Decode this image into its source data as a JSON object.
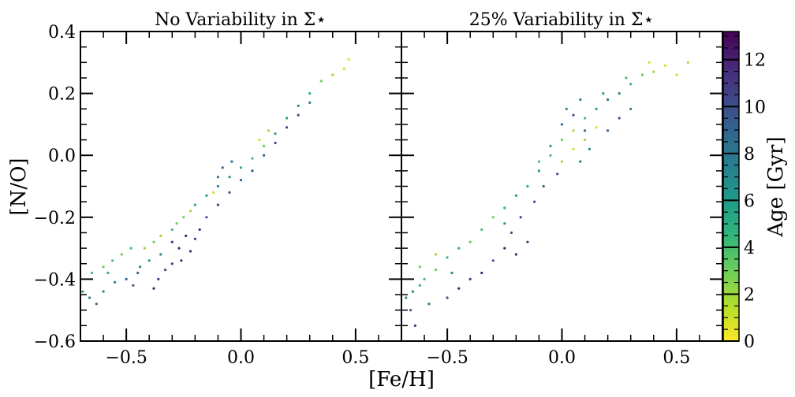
{
  "figure": {
    "xlabel": "[Fe/H]",
    "ylabel": "[N/O]",
    "colorbar_label": "Age [Gyr]"
  },
  "chart_data": [
    {
      "type": "scatter",
      "title": "No Variability in Σ̇⋆",
      "xlabel": "[Fe/H]",
      "ylabel": "[N/O]",
      "xlim": [
        -0.7,
        0.7
      ],
      "ylim": [
        -0.6,
        0.4
      ],
      "xticks": [
        -0.5,
        0.0,
        0.5
      ],
      "xtick_labels": [
        "−0.5",
        "0.0",
        "0.5"
      ],
      "yticks": [
        -0.6,
        -0.4,
        -0.2,
        0.0,
        0.2,
        0.4
      ],
      "ytick_labels": [
        "−0.6",
        "−0.4",
        "−0.2",
        "0.0",
        "0.2",
        "0.4"
      ],
      "grid": false,
      "points_x_y_age": [
        [
          -0.69,
          -0.44,
          6
        ],
        [
          -0.66,
          -0.46,
          8
        ],
        [
          -0.63,
          -0.48,
          9
        ],
        [
          -0.65,
          -0.38,
          4
        ],
        [
          -0.6,
          -0.36,
          3
        ],
        [
          -0.56,
          -0.34,
          4
        ],
        [
          -0.52,
          -0.32,
          3
        ],
        [
          -0.5,
          -0.4,
          9
        ],
        [
          -0.47,
          -0.42,
          10
        ],
        [
          -0.45,
          -0.38,
          9
        ],
        [
          -0.55,
          -0.41,
          8
        ],
        [
          -0.58,
          -0.38,
          5
        ],
        [
          -0.48,
          -0.3,
          4
        ],
        [
          -0.42,
          -0.3,
          2
        ],
        [
          -0.38,
          -0.28,
          3
        ],
        [
          -0.35,
          -0.26,
          2
        ],
        [
          -0.3,
          -0.24,
          4
        ],
        [
          -0.25,
          -0.2,
          3
        ],
        [
          -0.2,
          -0.16,
          5
        ],
        [
          -0.15,
          -0.13,
          6
        ],
        [
          -0.1,
          -0.1,
          7
        ],
        [
          -0.05,
          -0.07,
          6
        ],
        [
          0.0,
          -0.04,
          5
        ],
        [
          0.05,
          -0.01,
          4
        ],
        [
          0.1,
          0.03,
          3
        ],
        [
          0.15,
          0.07,
          5
        ],
        [
          0.2,
          0.12,
          6
        ],
        [
          0.25,
          0.16,
          7
        ],
        [
          0.3,
          0.2,
          5
        ],
        [
          0.35,
          0.24,
          3
        ],
        [
          0.4,
          0.26,
          2
        ],
        [
          0.45,
          0.28,
          1
        ],
        [
          0.47,
          0.31,
          0.5
        ],
        [
          0.08,
          0.05,
          1
        ],
        [
          0.12,
          0.08,
          2
        ],
        [
          -0.12,
          -0.12,
          1
        ],
        [
          -0.22,
          -0.18,
          2
        ],
        [
          -0.28,
          -0.22,
          3
        ],
        [
          -0.3,
          -0.28,
          11
        ],
        [
          -0.27,
          -0.3,
          12
        ],
        [
          -0.24,
          -0.26,
          12
        ],
        [
          -0.2,
          -0.27,
          11
        ],
        [
          -0.18,
          -0.24,
          12
        ],
        [
          -0.26,
          -0.34,
          12
        ],
        [
          -0.3,
          -0.35,
          11
        ],
        [
          -0.33,
          -0.37,
          10
        ],
        [
          -0.36,
          -0.4,
          11
        ],
        [
          -0.38,
          -0.43,
          12
        ],
        [
          -0.22,
          -0.31,
          12
        ],
        [
          -0.15,
          -0.2,
          10
        ],
        [
          -0.1,
          -0.16,
          11
        ],
        [
          -0.05,
          -0.12,
          10
        ],
        [
          0.0,
          -0.08,
          9
        ],
        [
          0.05,
          -0.05,
          10
        ],
        [
          0.1,
          0.0,
          9
        ],
        [
          0.15,
          0.04,
          10
        ],
        [
          0.2,
          0.09,
          11
        ],
        [
          0.25,
          0.13,
          10
        ],
        [
          -0.08,
          -0.04,
          9
        ],
        [
          -0.04,
          -0.02,
          8
        ],
        [
          -0.1,
          -0.07,
          8
        ],
        [
          0.3,
          0.17,
          8
        ],
        [
          -0.35,
          -0.32,
          7
        ],
        [
          -0.4,
          -0.34,
          6
        ],
        [
          -0.44,
          -0.36,
          7
        ],
        [
          -0.6,
          -0.44,
          7
        ]
      ]
    },
    {
      "type": "scatter",
      "title": "25% Variability in Σ̇⋆",
      "xlabel": "[Fe/H]",
      "xlim": [
        -0.7,
        0.7
      ],
      "ylim": [
        -0.6,
        0.4
      ],
      "xticks": [
        -0.5,
        0.0,
        0.5
      ],
      "xtick_labels": [
        "−0.5",
        "0.0",
        "0.5"
      ],
      "grid": false,
      "points_x_y_age": [
        [
          -0.68,
          -0.46,
          6
        ],
        [
          -0.65,
          -0.44,
          7
        ],
        [
          -0.62,
          -0.42,
          5
        ],
        [
          -0.66,
          -0.5,
          10
        ],
        [
          -0.64,
          -0.55,
          11
        ],
        [
          -0.6,
          -0.4,
          4
        ],
        [
          -0.55,
          -0.37,
          3
        ],
        [
          -0.5,
          -0.33,
          4
        ],
        [
          -0.45,
          -0.3,
          5
        ],
        [
          -0.4,
          -0.28,
          3
        ],
        [
          -0.35,
          -0.24,
          4
        ],
        [
          -0.3,
          -0.2,
          3
        ],
        [
          -0.25,
          -0.17,
          5
        ],
        [
          -0.2,
          -0.13,
          6
        ],
        [
          -0.15,
          -0.1,
          5
        ],
        [
          -0.1,
          -0.05,
          6
        ],
        [
          -0.05,
          0.0,
          4
        ],
        [
          0.0,
          0.05,
          3
        ],
        [
          0.05,
          0.08,
          2
        ],
        [
          0.1,
          0.12,
          4
        ],
        [
          0.15,
          0.15,
          6
        ],
        [
          0.2,
          0.18,
          8
        ],
        [
          0.25,
          0.2,
          7
        ],
        [
          0.3,
          0.23,
          5
        ],
        [
          0.35,
          0.26,
          3
        ],
        [
          0.4,
          0.27,
          2
        ],
        [
          0.45,
          0.29,
          1
        ],
        [
          0.55,
          0.3,
          2
        ],
        [
          0.5,
          0.26,
          1
        ],
        [
          0.38,
          0.3,
          1
        ],
        [
          0.0,
          0.1,
          9
        ],
        [
          0.05,
          0.13,
          10
        ],
        [
          0.1,
          0.08,
          9
        ],
        [
          0.12,
          0.02,
          7
        ],
        [
          0.08,
          -0.02,
          8
        ],
        [
          -0.02,
          -0.06,
          10
        ],
        [
          -0.08,
          -0.1,
          9
        ],
        [
          -0.12,
          -0.15,
          10
        ],
        [
          -0.18,
          -0.2,
          11
        ],
        [
          -0.22,
          -0.25,
          10
        ],
        [
          -0.25,
          -0.3,
          12
        ],
        [
          -0.2,
          -0.32,
          12
        ],
        [
          -0.15,
          -0.28,
          11
        ],
        [
          -0.3,
          -0.34,
          10
        ],
        [
          -0.35,
          -0.38,
          12
        ],
        [
          -0.4,
          -0.4,
          11
        ],
        [
          -0.45,
          -0.43,
          12
        ],
        [
          -0.5,
          -0.46,
          10
        ],
        [
          0.2,
          0.08,
          9
        ],
        [
          0.25,
          0.12,
          10
        ],
        [
          0.3,
          0.15,
          8
        ],
        [
          0.0,
          -0.02,
          2
        ],
        [
          0.05,
          0.02,
          1
        ],
        [
          0.1,
          0.05,
          2
        ],
        [
          0.15,
          0.09,
          1
        ],
        [
          -0.1,
          -0.02,
          4
        ],
        [
          -0.05,
          0.03,
          6
        ],
        [
          0.02,
          0.15,
          7
        ],
        [
          0.08,
          0.18,
          8
        ],
        [
          -0.25,
          -0.22,
          6
        ],
        [
          -0.55,
          -0.32,
          2
        ],
        [
          -0.62,
          -0.36,
          3
        ],
        [
          -0.58,
          -0.48,
          8
        ],
        [
          -0.48,
          -0.38,
          7
        ],
        [
          0.18,
          0.2,
          6
        ],
        [
          0.28,
          0.25,
          4
        ]
      ]
    }
  ],
  "colorbar": {
    "label": "Age [Gyr]",
    "range": [
      0,
      13.2
    ],
    "ticks": [
      0,
      2,
      4,
      6,
      8,
      10,
      12
    ],
    "tick_labels": [
      "0",
      "2",
      "4",
      "6",
      "8",
      "10",
      "12"
    ],
    "colormap": "viridis_r",
    "stops": [
      "#fde725",
      "#b5de2b",
      "#6ece58",
      "#35b779",
      "#1f9e89",
      "#26828e",
      "#31688e",
      "#3e4989",
      "#482878",
      "#440154"
    ]
  }
}
